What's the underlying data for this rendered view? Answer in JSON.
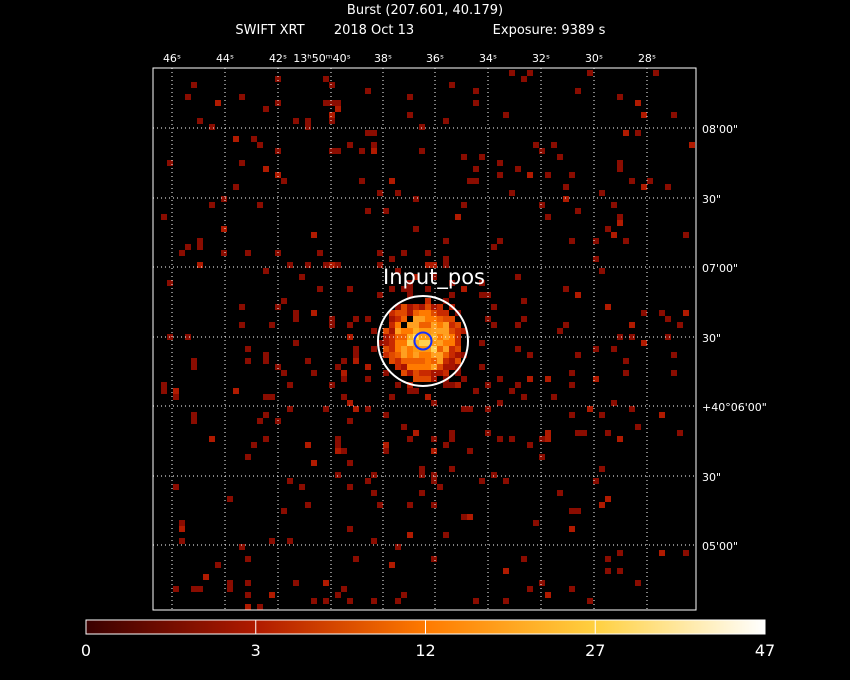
{
  "header": {
    "title": "Burst (207.601, 40.179)",
    "instrument": "SWIFT XRT",
    "date": "2018 Oct 13",
    "exposure": "Exposure: 9389 s"
  },
  "ra_labels": [
    "46ˢ",
    "44ˢ",
    "42ˢ",
    "13ʰ50ᵐ40ˢ",
    "38ˢ",
    "36ˢ",
    "34ˢ",
    "32ˢ",
    "30ˢ",
    "28ˢ"
  ],
  "dec_labels": [
    "08'00\"",
    "30\"",
    "07'00\"",
    "30\"",
    "+40°06'00\"",
    "30\"",
    "05'00\""
  ],
  "region_label": "Input_pos",
  "colorbar_labels": [
    "0",
    "3",
    "12",
    "27",
    "47"
  ]
}
